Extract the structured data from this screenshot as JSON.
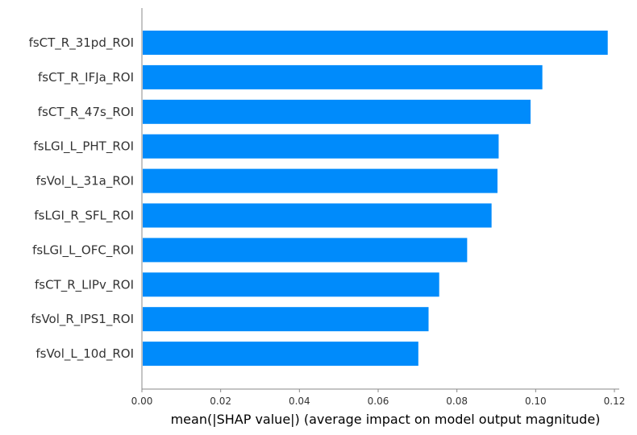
{
  "chart_data": {
    "type": "bar",
    "orientation": "horizontal",
    "categories": [
      "fsCT_R_31pd_ROI",
      "fsCT_R_IFJa_ROI",
      "fsCT_R_47s_ROI",
      "fsLGI_L_PHT_ROI",
      "fsVol_L_31a_ROI",
      "fsLGI_R_SFL_ROI",
      "fsLGI_L_OFC_ROI",
      "fsCT_R_LIPv_ROI",
      "fsVol_R_IPS1_ROI",
      "fsVol_L_10d_ROI"
    ],
    "values": [
      0.1183,
      0.1017,
      0.0987,
      0.0906,
      0.0903,
      0.0888,
      0.0826,
      0.0755,
      0.0728,
      0.0702
    ],
    "title": "",
    "xlabel": "mean(|SHAP value|) (average impact on model output magnitude)",
    "ylabel": "",
    "xlim": [
      0,
      0.12
    ],
    "xticks": [
      "0.00",
      "0.02",
      "0.04",
      "0.06",
      "0.08",
      "0.10",
      "0.12"
    ],
    "grid": false,
    "bar_color": "#008bfb",
    "axis_color": "#888888"
  }
}
